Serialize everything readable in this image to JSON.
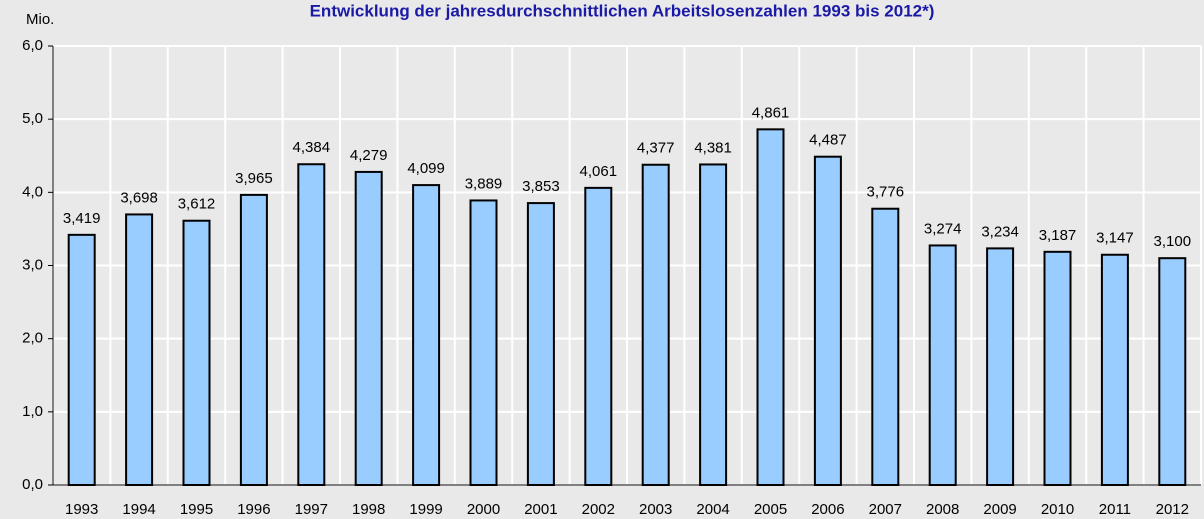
{
  "chart_data": {
    "type": "bar",
    "title": "Entwicklung der jahresdurchschnittlichen Arbeitslosenzahlen 1993 bis 2012*)",
    "y_label": "Mio.",
    "categories": [
      "1993",
      "1994",
      "1995",
      "1996",
      "1997",
      "1998",
      "1999",
      "2000",
      "2001",
      "2002",
      "2003",
      "2004",
      "2005",
      "2006",
      "2007",
      "2008",
      "2009",
      "2010",
      "2011",
      "2012"
    ],
    "values": [
      3.419,
      3.698,
      3.612,
      3.965,
      4.384,
      4.279,
      4.099,
      3.889,
      3.853,
      4.061,
      4.377,
      4.381,
      4.861,
      4.487,
      3.776,
      3.274,
      3.234,
      3.187,
      3.147,
      3.1
    ],
    "value_labels": [
      "3,419",
      "3,698",
      "3,612",
      "3,965",
      "4,384",
      "4,279",
      "4,099",
      "3,889",
      "3,853",
      "4,061",
      "4,377",
      "4,381",
      "4,861",
      "4,487",
      "3,776",
      "3,274",
      "3,234",
      "3,187",
      "3,147",
      "3,100"
    ],
    "color": "#99ccff",
    "ylim": [
      0,
      6
    ],
    "yticks": [
      {
        "value": 0,
        "label": "0,0"
      },
      {
        "value": 1,
        "label": "1,0"
      },
      {
        "value": 2,
        "label": "2,0"
      },
      {
        "value": 3,
        "label": "3,0"
      },
      {
        "value": 4,
        "label": "4,0"
      },
      {
        "value": 5,
        "label": "5,0"
      },
      {
        "value": 6,
        "label": "6,0"
      }
    ],
    "grid": true
  }
}
